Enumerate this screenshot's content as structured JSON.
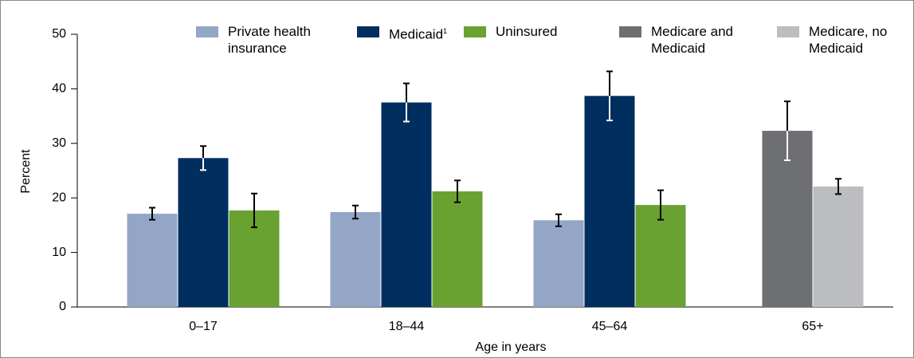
{
  "chart_data": {
    "type": "bar",
    "xlabel": "Age in years",
    "ylabel": "Percent",
    "categories": [
      "0–17",
      "18–44",
      "45–64",
      "65+"
    ],
    "ylim": [
      0,
      50
    ],
    "yticks": [
      0,
      10,
      20,
      30,
      40,
      50
    ],
    "series": [
      {
        "name": "Private health insurance",
        "color": "#94a6c6",
        "error_inside_color": "#000000",
        "values": [
          17.1,
          17.4,
          15.9,
          null
        ],
        "errors": [
          1.1,
          1.2,
          1.1,
          null
        ]
      },
      {
        "name": "Medicaid",
        "name_note": "1",
        "color": "#002e5f",
        "error_inside_color": "#ffffff",
        "values": [
          27.3,
          37.5,
          38.7,
          null
        ],
        "errors": [
          2.2,
          3.5,
          4.5,
          null
        ]
      },
      {
        "name": "Uninsured",
        "color": "#6aa232",
        "error_inside_color": "#000000",
        "values": [
          17.7,
          21.2,
          18.7,
          null
        ],
        "errors": [
          3.1,
          2.0,
          2.7,
          null
        ]
      },
      {
        "name": "Medicare and Medicaid",
        "color": "#6e6f72",
        "error_inside_color": "#ffffff",
        "values": [
          null,
          null,
          null,
          32.3
        ],
        "errors": [
          null,
          null,
          null,
          5.4
        ]
      },
      {
        "name": "Medicare, no Medicaid",
        "color": "#bcbdc0",
        "error_inside_color": "#000000",
        "values": [
          null,
          null,
          null,
          22.1
        ],
        "errors": [
          null,
          null,
          null,
          1.4
        ]
      }
    ]
  }
}
